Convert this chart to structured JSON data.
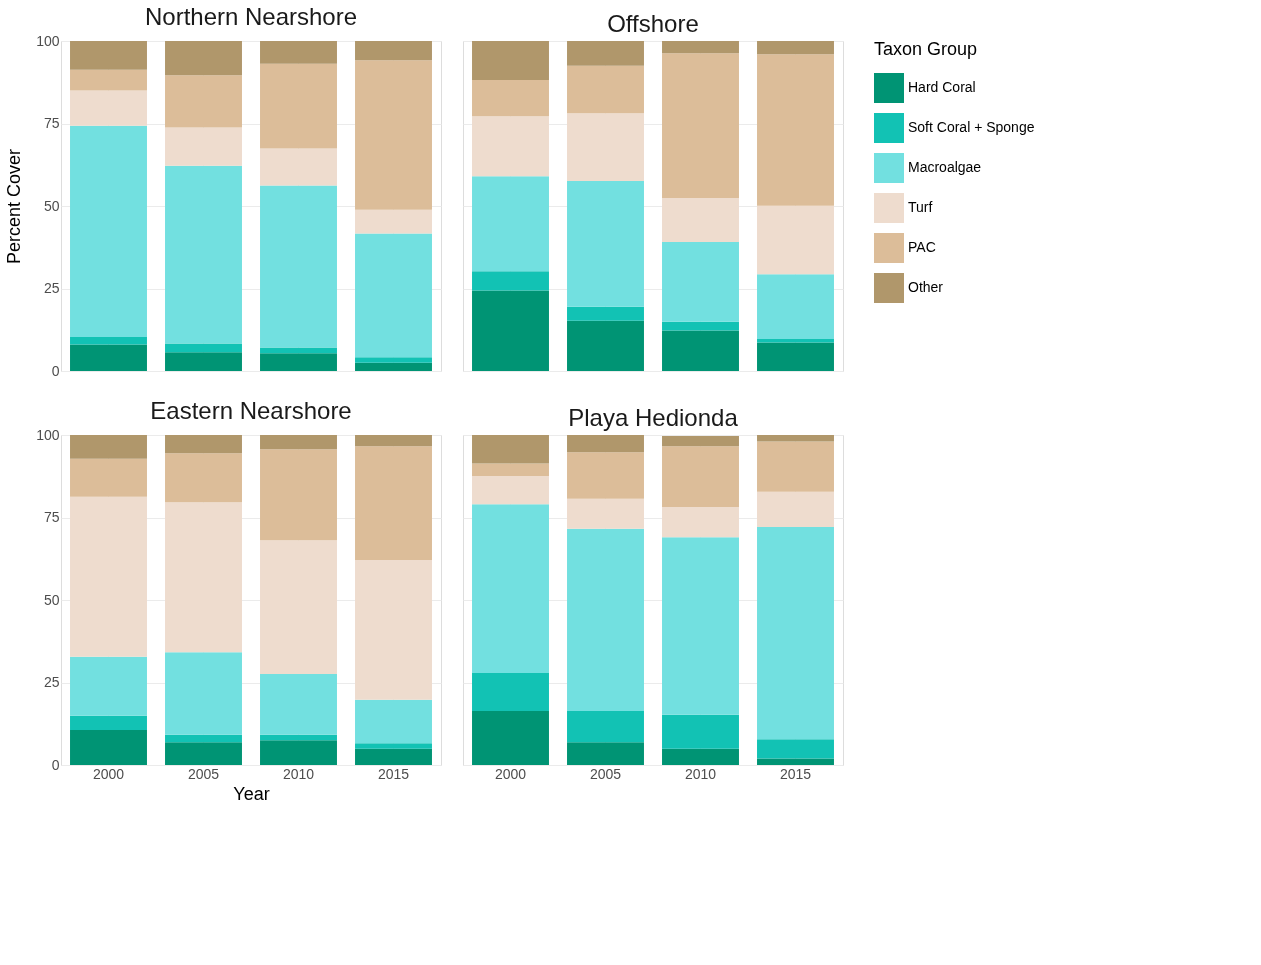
{
  "chart_data": [
    {
      "type": "bar",
      "stacked": true,
      "title": "Northern Nearshore",
      "ylabel": "Percent Cover",
      "categories": [
        "2000",
        "2005",
        "2010",
        "2015"
      ],
      "ylim": [
        0,
        100
      ],
      "yticks": [
        0,
        25,
        50,
        75,
        100
      ],
      "grid": true,
      "tick_labels": "y",
      "legend": "right",
      "legend_title": "Taxon Group",
      "series": [
        {
          "name": "Hard Coral",
          "color": "#009474",
          "values": [
            8.0,
            5.7,
            5.4,
            2.5
          ]
        },
        {
          "name": "Soft Coral + Sponge",
          "color": "#12c2b4",
          "values": [
            2.3,
            2.6,
            1.7,
            1.7
          ]
        },
        {
          "name": "Macroalgae",
          "color": "#72e0e0",
          "values": [
            64.0,
            53.9,
            49.1,
            37.5
          ]
        },
        {
          "name": "Turf",
          "color": "#eedcce",
          "values": [
            10.7,
            11.6,
            11.2,
            7.2
          ]
        },
        {
          "name": "PAC",
          "color": "#dcbd99",
          "values": [
            6.3,
            15.8,
            25.7,
            45.3
          ]
        },
        {
          "name": "Other",
          "color": "#b0976b",
          "values": [
            8.7,
            10.4,
            6.9,
            5.8
          ]
        }
      ]
    },
    {
      "type": "bar",
      "stacked": true,
      "title": "Offshore",
      "categories": [
        "2000",
        "2005",
        "2010",
        "2015"
      ],
      "ylim": [
        0,
        100
      ],
      "yticks": [
        0,
        25,
        50,
        75,
        100
      ],
      "grid": true,
      "tick_labels": false,
      "legend": "right",
      "series": [
        {
          "name": "Hard Coral",
          "color": "#009474",
          "values": [
            24.4,
            15.2,
            12.3,
            8.6
          ]
        },
        {
          "name": "Soft Coral + Sponge",
          "color": "#12c2b4",
          "values": [
            5.8,
            4.3,
            2.6,
            1.1
          ]
        },
        {
          "name": "Macroalgae",
          "color": "#72e0e0",
          "values": [
            28.8,
            38.1,
            24.2,
            19.6
          ]
        },
        {
          "name": "Turf",
          "color": "#eedcce",
          "values": [
            18.2,
            20.5,
            13.3,
            20.8
          ]
        },
        {
          "name": "PAC",
          "color": "#dcbd99",
          "values": [
            11.0,
            14.4,
            43.9,
            45.9
          ]
        },
        {
          "name": "Other",
          "color": "#b0976b",
          "values": [
            11.8,
            7.5,
            3.7,
            4.0
          ]
        }
      ]
    },
    {
      "type": "bar",
      "stacked": true,
      "title": "Eastern Nearshore",
      "xlabel": "Year",
      "categories": [
        "2000",
        "2005",
        "2010",
        "2015"
      ],
      "ylim": [
        0,
        100
      ],
      "yticks": [
        0,
        25,
        50,
        75,
        100
      ],
      "grid": true,
      "legend": "right",
      "series": [
        {
          "name": "Hard Coral",
          "color": "#009474",
          "values": [
            10.6,
            6.9,
            7.5,
            4.9
          ]
        },
        {
          "name": "Soft Coral + Sponge",
          "color": "#12c2b4",
          "values": [
            4.3,
            2.3,
            1.7,
            1.7
          ]
        },
        {
          "name": "Macroalgae",
          "color": "#72e0e0",
          "values": [
            17.9,
            25.0,
            18.4,
            13.2
          ]
        },
        {
          "name": "Turf",
          "color": "#eedcce",
          "values": [
            48.5,
            45.4,
            40.5,
            42.3
          ]
        },
        {
          "name": "PAC",
          "color": "#dcbd99",
          "values": [
            11.5,
            14.9,
            27.6,
            34.5
          ]
        },
        {
          "name": "Other",
          "color": "#b0976b",
          "values": [
            7.2,
            5.5,
            4.3,
            3.4
          ]
        }
      ]
    },
    {
      "type": "bar",
      "stacked": true,
      "title": "Playa Hedionda",
      "categories": [
        "2000",
        "2005",
        "2010",
        "2015"
      ],
      "ylim": [
        0,
        100
      ],
      "yticks": [
        0,
        25,
        50,
        75,
        100
      ],
      "grid": true,
      "tick_labels": "x",
      "legend": "right",
      "series": [
        {
          "name": "Hard Coral",
          "color": "#009474",
          "values": [
            16.4,
            6.9,
            4.9,
            2.0
          ]
        },
        {
          "name": "Soft Coral + Sponge",
          "color": "#12c2b4",
          "values": [
            11.5,
            9.5,
            10.3,
            5.8
          ]
        },
        {
          "name": "Macroalgae",
          "color": "#72e0e0",
          "values": [
            51.1,
            55.2,
            53.8,
            64.3
          ]
        },
        {
          "name": "Turf",
          "color": "#eedcce",
          "values": [
            8.6,
            9.1,
            9.2,
            10.7
          ]
        },
        {
          "name": "PAC",
          "color": "#dcbd99",
          "values": [
            3.8,
            14.1,
            18.4,
            15.2
          ]
        },
        {
          "name": "Other",
          "color": "#b0976b",
          "values": [
            8.6,
            5.2,
            3.1,
            2.0
          ]
        }
      ]
    }
  ]
}
